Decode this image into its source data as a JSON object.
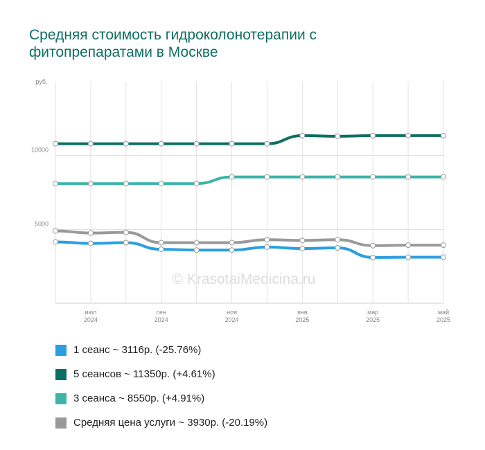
{
  "chart_data": {
    "type": "line",
    "title": "Средняя стоимость гидроколонотерапии с фитопрепаратами в Москве",
    "y_label": "руб.",
    "watermark": "© KrasotaiMedicina.ru",
    "categories": [
      null,
      "июл 2024",
      null,
      "сен 2024",
      null,
      "ноя 2024",
      null,
      "янв 2025",
      null,
      "мар 2025",
      null,
      "май 2025"
    ],
    "ylim": [
      0,
      15000
    ],
    "yticks": [
      5000,
      10000
    ],
    "grid": true,
    "series": [
      {
        "name": "1 сеанс ~ 3116р. (-25.76%)",
        "color": "#2a9fe0",
        "values": [
          4150,
          4050,
          4100,
          3650,
          3600,
          3600,
          3800,
          3700,
          3750,
          3100,
          3116,
          3116
        ]
      },
      {
        "name": "5 сеансов ~ 11350р. (+4.61%)",
        "color": "#0f6e64",
        "values": [
          10800,
          10800,
          10800,
          10800,
          10800,
          10800,
          10800,
          11350,
          11300,
          11350,
          11350,
          11350
        ]
      },
      {
        "name": "3 сеанса ~ 8550р. (+4.91%)",
        "color": "#3cb4a8",
        "values": [
          8100,
          8100,
          8100,
          8100,
          8100,
          8550,
          8550,
          8550,
          8550,
          8550,
          8550,
          8550
        ]
      },
      {
        "name": "Средняя цена услуги ~ 3930р. (-20.19%)",
        "color": "#999999",
        "values": [
          4900,
          4750,
          4800,
          4100,
          4100,
          4100,
          4300,
          4250,
          4300,
          3900,
          3930,
          3930
        ]
      }
    ]
  }
}
